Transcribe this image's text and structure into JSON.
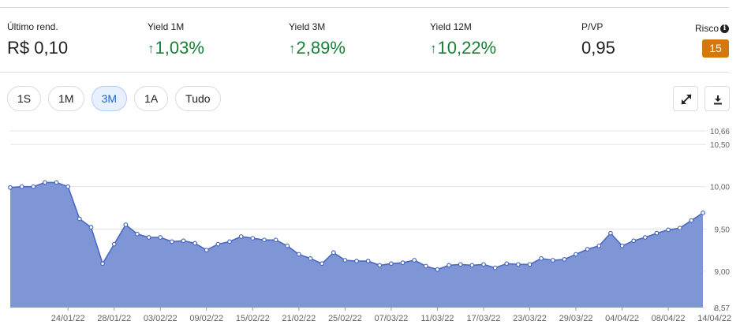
{
  "stats": [
    {
      "label": "Último rend.",
      "value": "R$ 0,10",
      "trend": ""
    },
    {
      "label": "Yield 1M",
      "value": "1,03%",
      "trend": "up"
    },
    {
      "label": "Yield 3M",
      "value": "2,89%",
      "trend": "up"
    },
    {
      "label": "Yield 12M",
      "value": "10,22%",
      "trend": "up"
    },
    {
      "label": "P/VP",
      "value": "0,95",
      "trend": ""
    }
  ],
  "risk": {
    "label": "Risco",
    "value": "15",
    "badge_color": "#d4770c",
    "info_icon": "info-icon"
  },
  "ranges": [
    "1S",
    "1M",
    "3M",
    "1A",
    "Tudo"
  ],
  "active_range": "3M",
  "tools": {
    "expand_icon": "expand-icon",
    "download_icon": "download-icon"
  },
  "colors": {
    "up": "#188038",
    "area_fill": "#7f96d6",
    "line": "#4a67c2",
    "accent": "#1967d2"
  },
  "chart_data": {
    "type": "area",
    "grid": true,
    "ylim": [
      8.57,
      10.66
    ],
    "y_ticks": [
      {
        "value": 10.66,
        "label": "10,66"
      },
      {
        "value": 10.5,
        "label": "10,50"
      },
      {
        "value": 10.0,
        "label": "10,00"
      },
      {
        "value": 9.5,
        "label": "9,50"
      },
      {
        "value": 9.0,
        "label": "9,00"
      },
      {
        "value": 8.57,
        "label": "8,57"
      }
    ],
    "x_labels": [
      {
        "index": 5,
        "label": "24/01/22"
      },
      {
        "index": 9,
        "label": "28/01/22"
      },
      {
        "index": 13,
        "label": "03/02/22"
      },
      {
        "index": 17,
        "label": "09/02/22"
      },
      {
        "index": 21,
        "label": "15/02/22"
      },
      {
        "index": 25,
        "label": "21/02/22"
      },
      {
        "index": 29,
        "label": "25/02/22"
      },
      {
        "index": 33,
        "label": "07/03/22"
      },
      {
        "index": 37,
        "label": "11/03/22"
      },
      {
        "index": 41,
        "label": "17/03/22"
      },
      {
        "index": 45,
        "label": "23/03/22"
      },
      {
        "index": 49,
        "label": "29/03/22"
      },
      {
        "index": 53,
        "label": "04/04/22"
      },
      {
        "index": 57,
        "label": "08/04/22"
      },
      {
        "index": 61,
        "label": "14/04/22"
      }
    ],
    "series": [
      {
        "values": [
          9.99,
          10.0,
          10.0,
          10.05,
          10.05,
          10.0,
          9.62,
          9.52,
          9.09,
          9.32,
          9.55,
          9.44,
          9.4,
          9.4,
          9.35,
          9.36,
          9.33,
          9.25,
          9.32,
          9.35,
          9.41,
          9.39,
          9.37,
          9.37,
          9.3,
          9.2,
          9.15,
          9.09,
          9.22,
          9.13,
          9.12,
          9.12,
          9.07,
          9.09,
          9.1,
          9.13,
          9.06,
          9.02,
          9.07,
          9.08,
          9.07,
          9.08,
          9.04,
          9.09,
          9.08,
          9.08,
          9.15,
          9.13,
          9.14,
          9.2,
          9.26,
          9.3,
          9.45,
          9.3,
          9.36,
          9.4,
          9.45,
          9.49,
          9.51,
          9.6,
          9.69
        ]
      }
    ]
  }
}
